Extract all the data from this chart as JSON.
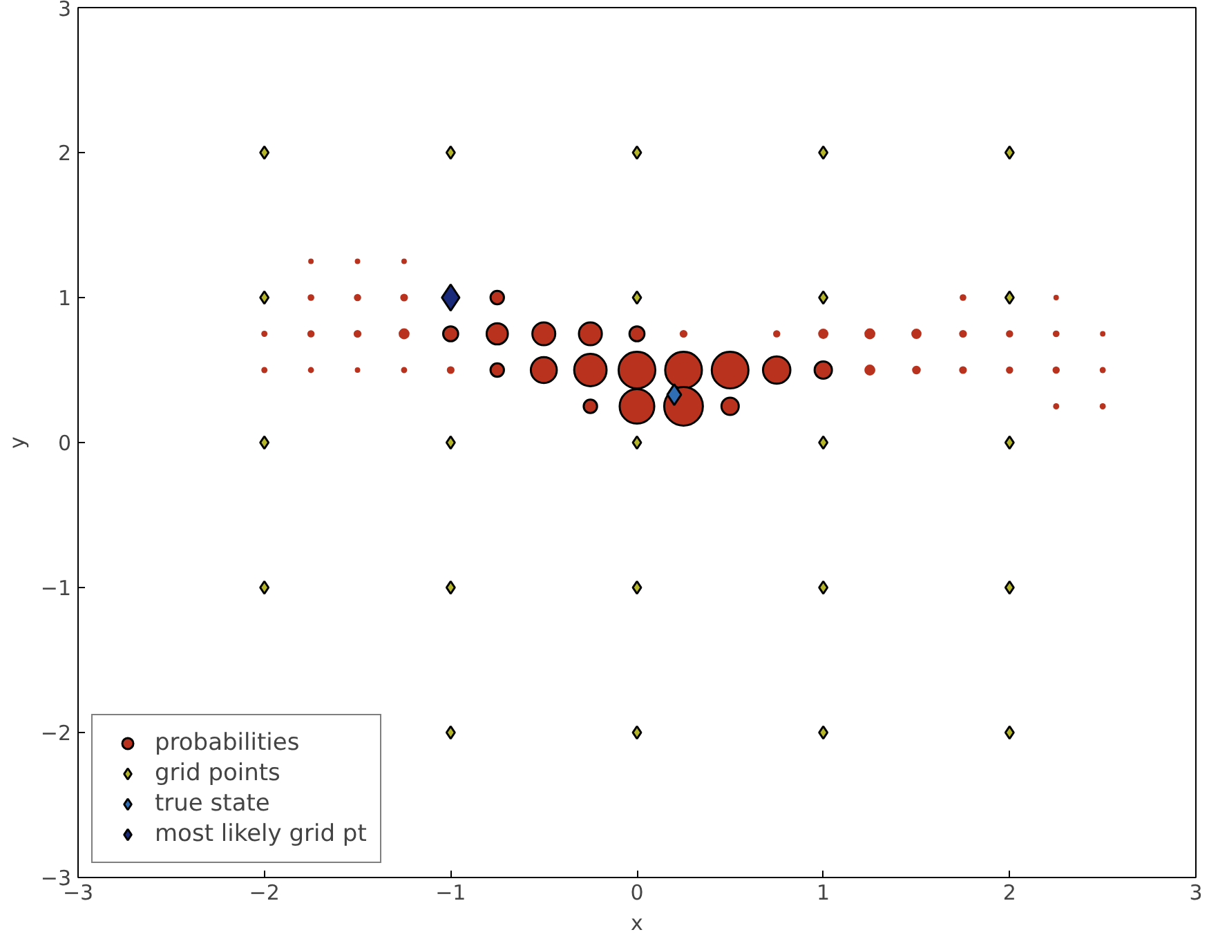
{
  "chart_data": {
    "type": "bubble",
    "xlabel": "x",
    "ylabel": "y",
    "xlim": [
      -3,
      3
    ],
    "ylim": [
      -3,
      3
    ],
    "xticks": [
      -3,
      -2,
      -1,
      0,
      1,
      2,
      3
    ],
    "yticks": [
      -3,
      -2,
      -1,
      0,
      1,
      2,
      3
    ],
    "legend": "bottom left",
    "grid": false,
    "series": [
      {
        "name": "probabilities",
        "color": "#b8321e",
        "x": [
          -1.75,
          -1.5,
          -1.25,
          -1.75,
          -1.5,
          -1.25,
          -0.75,
          1.75,
          2.25,
          -2,
          -1.75,
          -1.5,
          -1.25,
          -1,
          -0.75,
          -0.5,
          -0.25,
          0,
          0.25,
          0.75,
          1,
          1.25,
          1.5,
          1.75,
          2,
          2.25,
          2.5,
          -2,
          -1.75,
          -1.5,
          -1.25,
          -1,
          -0.75,
          -0.5,
          -0.25,
          0,
          0.25,
          0.5,
          0.75,
          1,
          1.25,
          1.5,
          1.75,
          2,
          2.25,
          2.5,
          -0.25,
          0,
          0.25,
          0.5,
          2.25,
          2.5
        ],
        "values": [
          1.25,
          1.25,
          1.25,
          1,
          1,
          1,
          1,
          1,
          1,
          0.75,
          0.75,
          0.75,
          0.75,
          0.75,
          0.75,
          0.75,
          0.75,
          0.75,
          0.75,
          0.75,
          0.75,
          0.75,
          0.75,
          0.75,
          0.75,
          0.75,
          0.75,
          0.5,
          0.5,
          0.5,
          0.5,
          0.5,
          0.5,
          0.5,
          0.5,
          0.5,
          0.5,
          0.5,
          0.5,
          0.5,
          0.5,
          0.5,
          0.5,
          0.5,
          0.5,
          0.5,
          0.25,
          0.25,
          0.25,
          0.25,
          0.25,
          0.25
        ],
        "sizes": [
          0.02,
          0.02,
          0.02,
          0.03,
          0.035,
          0.04,
          0.12,
          0.03,
          0.02,
          0.025,
          0.035,
          0.04,
          0.08,
          0.15,
          0.3,
          0.35,
          0.35,
          0.15,
          0.04,
          0.035,
          0.07,
          0.08,
          0.07,
          0.04,
          0.035,
          0.03,
          0.02,
          0.025,
          0.025,
          0.02,
          0.025,
          0.04,
          0.12,
          0.45,
          0.7,
          0.9,
          0.9,
          0.9,
          0.5,
          0.2,
          0.08,
          0.05,
          0.04,
          0.035,
          0.035,
          0.025,
          0.12,
          0.8,
          1.0,
          0.2,
          0.025,
          0.025
        ]
      },
      {
        "name": "grid points",
        "type": "scatter",
        "marker": "diamond",
        "color": "#b5b52a",
        "x": [
          -2,
          -2,
          -2,
          -2,
          -1,
          -1,
          -1,
          -1,
          0,
          0,
          0,
          0,
          0,
          1,
          1,
          1,
          1,
          1,
          2,
          2,
          2,
          2,
          2
        ],
        "values": [
          2,
          1,
          0,
          -1,
          2,
          0,
          -1,
          -2,
          2,
          1,
          0,
          -1,
          -2,
          2,
          1,
          0,
          -1,
          -2,
          2,
          1,
          0,
          -1,
          -2
        ]
      },
      {
        "name": "true state",
        "type": "scatter",
        "marker": "diamond",
        "color": "#2f6db5",
        "x": [
          0.2
        ],
        "values": [
          0.33
        ]
      },
      {
        "name": "most likely grid pt",
        "type": "scatter",
        "marker": "diamond",
        "color": "#1a2a7a",
        "x": [
          -1
        ],
        "values": [
          1
        ]
      }
    ]
  }
}
